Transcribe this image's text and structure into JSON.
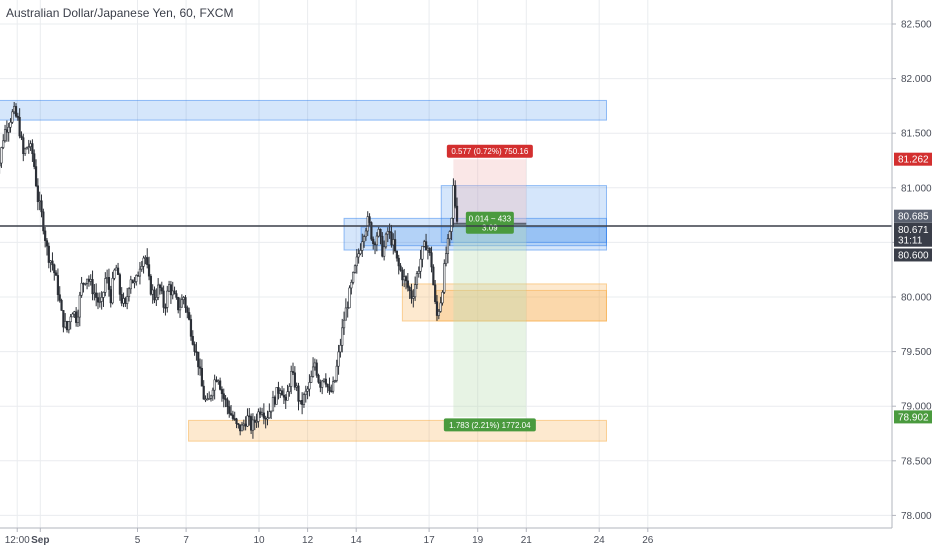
{
  "header": {
    "title": "Australian Dollar/Japanese Yen, 60, FXCM"
  },
  "chart_data": {
    "type": "candlestick",
    "title": "Australian Dollar/Japanese Yen, 60, FXCM",
    "ylim": [
      77.9,
      82.7
    ],
    "y_ticks": [
      "82.500",
      "82.000",
      "81.500",
      "81.000",
      "80.500",
      "80.000",
      "79.500",
      "79.000",
      "78.500",
      "78.000"
    ],
    "y_tick_values": [
      82.5,
      82.0,
      81.5,
      81.0,
      80.5,
      80.0,
      79.5,
      79.0,
      78.5,
      78.0
    ],
    "x_ticks": [
      {
        "label": "12:00",
        "x": 0.05,
        "bold": false
      },
      {
        "label": "Sep",
        "x": 1.0,
        "bold": true
      },
      {
        "label": "5",
        "x": 5.0,
        "bold": false
      },
      {
        "label": "7",
        "x": 7.0,
        "bold": false
      },
      {
        "label": "10",
        "x": 10.0,
        "bold": false
      },
      {
        "label": "12",
        "x": 12.0,
        "bold": false
      },
      {
        "label": "14",
        "x": 14.0,
        "bold": false
      },
      {
        "label": "17",
        "x": 17.0,
        "bold": false
      },
      {
        "label": "19",
        "x": 19.0,
        "bold": false
      },
      {
        "label": "21",
        "x": 21.0,
        "bold": false
      },
      {
        "label": "24",
        "x": 24.0,
        "bold": false
      },
      {
        "label": "26",
        "x": 26.0,
        "bold": false
      }
    ],
    "price_path": [
      [
        -0.9,
        81.4
      ],
      [
        -0.7,
        81.2
      ],
      [
        -0.5,
        81.5
      ],
      [
        -0.3,
        81.6
      ],
      [
        -0.1,
        81.7
      ],
      [
        0.1,
        81.6
      ],
      [
        0.3,
        81.3
      ],
      [
        0.5,
        81.4
      ],
      [
        0.7,
        81.3
      ],
      [
        0.9,
        80.9
      ],
      [
        1.1,
        80.7
      ],
      [
        1.3,
        80.4
      ],
      [
        1.5,
        80.3
      ],
      [
        1.7,
        80.1
      ],
      [
        1.9,
        79.8
      ],
      [
        2.1,
        79.7
      ],
      [
        2.3,
        79.9
      ],
      [
        2.5,
        79.8
      ],
      [
        2.7,
        80.1
      ],
      [
        2.9,
        80.2
      ],
      [
        3.1,
        80.1
      ],
      [
        3.3,
        80.0
      ],
      [
        3.5,
        79.9
      ],
      [
        3.7,
        80.2
      ],
      [
        3.9,
        80.0
      ],
      [
        4.1,
        80.3
      ],
      [
        4.3,
        80.0
      ],
      [
        4.5,
        79.9
      ],
      [
        4.7,
        80.2
      ],
      [
        4.9,
        80.1
      ],
      [
        5.1,
        80.3
      ],
      [
        5.3,
        80.4
      ],
      [
        5.5,
        80.1
      ],
      [
        5.7,
        80.0
      ],
      [
        5.9,
        80.1
      ],
      [
        6.1,
        79.9
      ],
      [
        6.3,
        80.1
      ],
      [
        6.5,
        80.0
      ],
      [
        6.7,
        79.9
      ],
      [
        6.9,
        80.0
      ],
      [
        7.1,
        79.8
      ],
      [
        7.3,
        79.6
      ],
      [
        7.5,
        79.4
      ],
      [
        7.7,
        79.1
      ],
      [
        7.9,
        79.0
      ],
      [
        8.1,
        79.2
      ],
      [
        8.3,
        79.3
      ],
      [
        8.5,
        79.1
      ],
      [
        8.7,
        79.0
      ],
      [
        8.9,
        78.9
      ],
      [
        9.1,
        78.8
      ],
      [
        9.3,
        78.8
      ],
      [
        9.5,
        78.9
      ],
      [
        9.7,
        78.8
      ],
      [
        9.9,
        78.9
      ],
      [
        10.1,
        79.0
      ],
      [
        10.3,
        78.9
      ],
      [
        10.5,
        79.0
      ],
      [
        10.7,
        79.1
      ],
      [
        10.9,
        79.2
      ],
      [
        11.1,
        79.0
      ],
      [
        11.3,
        79.3
      ],
      [
        11.5,
        79.2
      ],
      [
        11.7,
        79.0
      ],
      [
        11.9,
        79.1
      ],
      [
        12.1,
        79.2
      ],
      [
        12.3,
        79.4
      ],
      [
        12.5,
        79.2
      ],
      [
        12.7,
        79.3
      ],
      [
        12.9,
        79.1
      ],
      [
        13.1,
        79.2
      ],
      [
        13.3,
        79.5
      ],
      [
        13.5,
        79.8
      ],
      [
        13.7,
        80.0
      ],
      [
        13.9,
        80.2
      ],
      [
        14.1,
        80.4
      ],
      [
        14.3,
        80.6
      ],
      [
        14.5,
        80.7
      ],
      [
        14.7,
        80.5
      ],
      [
        14.9,
        80.6
      ],
      [
        15.1,
        80.4
      ],
      [
        15.3,
        80.6
      ],
      [
        15.5,
        80.5
      ],
      [
        15.7,
        80.3
      ],
      [
        15.9,
        80.2
      ],
      [
        16.1,
        80.1
      ],
      [
        16.3,
        80.0
      ],
      [
        16.5,
        80.2
      ],
      [
        16.7,
        80.4
      ],
      [
        16.9,
        80.5
      ],
      [
        17.1,
        80.3
      ],
      [
        17.3,
        79.8
      ],
      [
        17.5,
        80.0
      ],
      [
        17.7,
        80.4
      ],
      [
        17.9,
        80.6
      ],
      [
        18.0,
        81.0
      ],
      [
        18.1,
        80.8
      ],
      [
        18.2,
        80.68
      ]
    ],
    "h_line": {
      "value": 80.65
    },
    "zones": [
      {
        "x0": -1.0,
        "x1": 24.3,
        "y0": 81.62,
        "y1": 81.8,
        "kind": "blue"
      },
      {
        "x0": 13.5,
        "x1": 24.3,
        "y0": 80.43,
        "y1": 80.72,
        "kind": "blue"
      },
      {
        "x0": 14.2,
        "x1": 24.3,
        "y0": 80.47,
        "y1": 80.64,
        "kind": "blue"
      },
      {
        "x0": 17.5,
        "x1": 24.3,
        "y0": 80.5,
        "y1": 81.02,
        "kind": "blue"
      },
      {
        "x0": 15.9,
        "x1": 24.3,
        "y0": 79.78,
        "y1": 80.12,
        "kind": "orange"
      },
      {
        "x0": 17.3,
        "x1": 24.3,
        "y0": 79.78,
        "y1": 80.06,
        "kind": "orange"
      },
      {
        "x0": 7.1,
        "x1": 24.3,
        "y0": 78.68,
        "y1": 78.87,
        "kind": "orange"
      }
    ],
    "position": {
      "x0": 18.0,
      "x1": 21.0,
      "entry": 80.671,
      "stop": 81.262,
      "target": 78.902,
      "risk_label": "0.577 (0.72%) 750.16",
      "reward_label": "1.783 (2.21%) 1772.04",
      "mid_label_1": "0.014 ~ 433",
      "mid_label_2": "3.09"
    },
    "price_badges": [
      {
        "label": "81.262",
        "value": 81.262,
        "color": "#d32f2f"
      },
      {
        "label": "80.685",
        "value": 80.74,
        "color": "#5b6271"
      },
      {
        "label": "80.671",
        "value": 80.62,
        "color": "#3a3e49"
      },
      {
        "label": "31:11",
        "value": 80.52,
        "color": "#3a3e49"
      },
      {
        "label": "80.600",
        "value": 80.385,
        "color": "#3a3e49"
      },
      {
        "label": "78.902",
        "value": 78.902,
        "color": "#4a9a3e"
      }
    ],
    "colors": {
      "blue_zone": "#2f80ed",
      "orange_zone": "#f7a940",
      "risk": "#f1b9b9",
      "reward": "#b9dcb2",
      "candle": "#2b2f36",
      "grid": "#eaecef"
    }
  }
}
